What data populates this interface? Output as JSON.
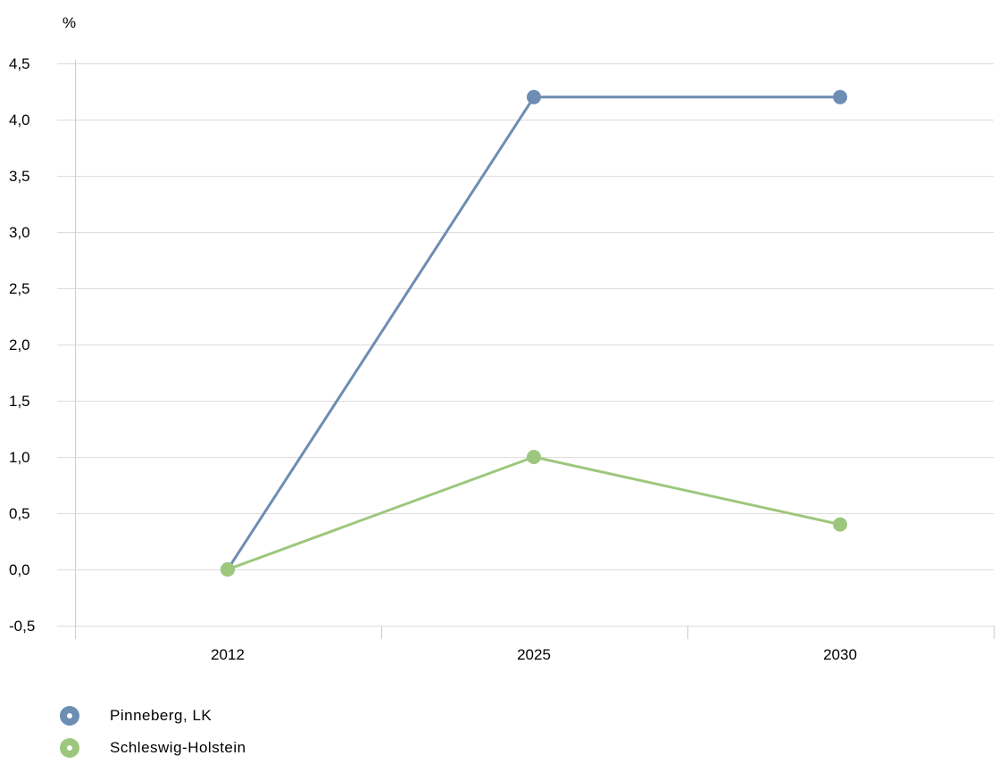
{
  "chart_data": {
    "type": "line",
    "ylabel": "%",
    "categories": [
      "2012",
      "2025",
      "2030"
    ],
    "yticks": [
      "-0,5",
      "0,0",
      "0,5",
      "1,0",
      "1,5",
      "2,0",
      "2,5",
      "3,0",
      "3,5",
      "4,0",
      "4,5"
    ],
    "ylim": [
      -0.5,
      4.5
    ],
    "grid": true,
    "legend_position": "bottom-left",
    "series": [
      {
        "name": "Pinneberg, LK",
        "color": "#6d8db3",
        "values": [
          0.0,
          4.2,
          4.2
        ]
      },
      {
        "name": "Schleswig-Holstein",
        "color": "#9cc77c",
        "values": [
          0.0,
          1.0,
          0.4
        ]
      }
    ]
  }
}
